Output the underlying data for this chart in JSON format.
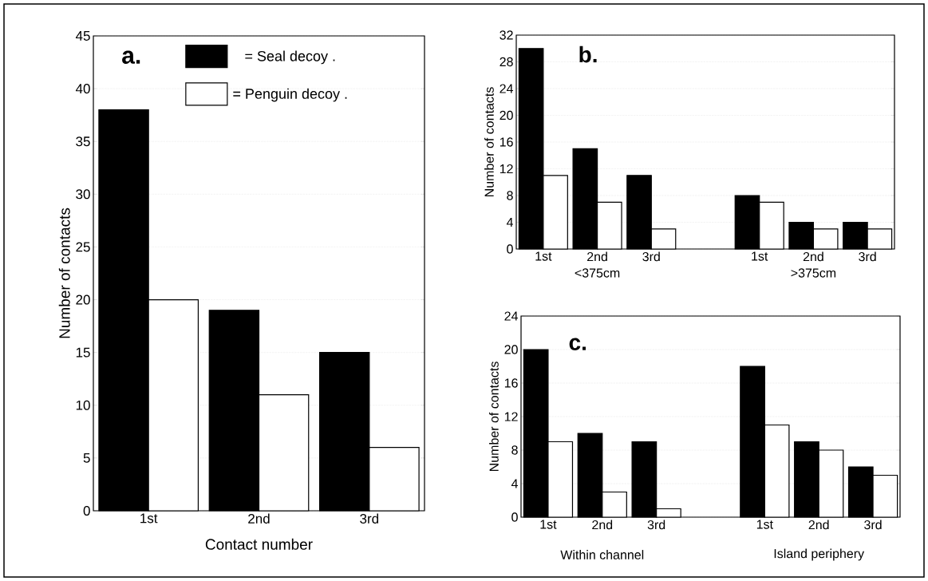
{
  "chart_data": [
    {
      "type": "bar",
      "title": "a.",
      "xlabel": "Contact number",
      "ylabel": "Number of contacts",
      "categories": [
        "1st",
        "2nd",
        "3rd"
      ],
      "series": [
        {
          "name": "= Seal decoy .",
          "color": "#000000",
          "values": [
            38,
            19,
            15
          ]
        },
        {
          "name": "= Penguin decoy .",
          "color": "#ffffff",
          "values": [
            20,
            11,
            6
          ]
        }
      ],
      "ylim": [
        0,
        45
      ],
      "yticks": [
        0,
        5,
        10,
        15,
        20,
        25,
        30,
        35,
        40,
        45
      ],
      "grid": "y",
      "legend": "top"
    },
    {
      "type": "bar",
      "title": "b.",
      "ylabel": "Number of contacts",
      "categories": [
        "1st",
        "2nd",
        "3rd",
        null,
        "1st",
        "2nd",
        "3rd"
      ],
      "series": [
        {
          "color": "#000000",
          "values": [
            30,
            15,
            11,
            null,
            8,
            4,
            4
          ]
        },
        {
          "color": "#ffffff",
          "values": [
            11,
            7,
            3,
            null,
            7,
            3,
            3
          ]
        }
      ],
      "ylim": [
        0,
        32
      ],
      "yticks": [
        0,
        4,
        8,
        12,
        16,
        20,
        24,
        28,
        32
      ],
      "grid": "y",
      "annotations": [
        "<375cm",
        ">375cm"
      ]
    },
    {
      "type": "bar",
      "title": "c.",
      "ylabel": "Number of contacts",
      "categories": [
        "1st",
        "2nd",
        "3rd",
        null,
        "1st",
        "2nd",
        "3rd"
      ],
      "series": [
        {
          "color": "#000000",
          "values": [
            20,
            10,
            9,
            null,
            18,
            9,
            6
          ]
        },
        {
          "color": "#ffffff",
          "values": [
            9,
            3,
            1,
            null,
            11,
            8,
            5
          ]
        }
      ],
      "ylim": [
        0,
        24
      ],
      "yticks": [
        0,
        4,
        8,
        12,
        16,
        20,
        24
      ],
      "grid": "y",
      "annotations": [
        "Within channel",
        "Island periphery"
      ]
    }
  ]
}
